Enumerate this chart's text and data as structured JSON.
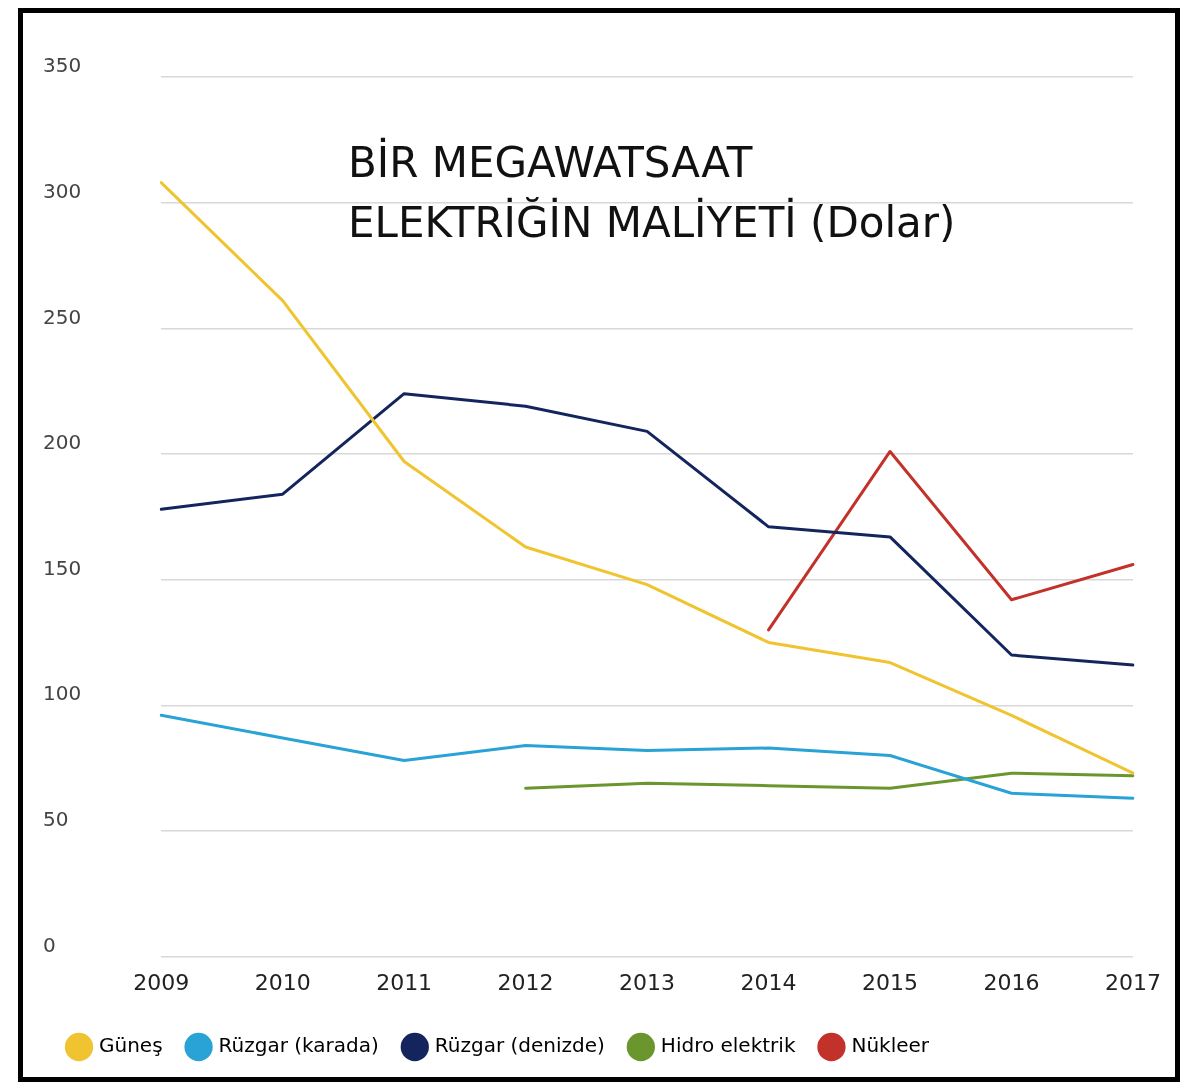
{
  "chart_data": {
    "type": "line",
    "title": "BİR MEGAWATSAAT\nELEKTRİĞİN MALİYETİ (Dolar)",
    "categories": [
      "2009",
      "2010",
      "2011",
      "2012",
      "2013",
      "2014",
      "2015",
      "2016",
      "2017"
    ],
    "series": [
      {
        "name": "Güneş",
        "color": "#f0c430",
        "values": [
          308,
          261,
          197,
          163,
          148,
          125,
          117,
          96,
          73
        ]
      },
      {
        "name": "Rüzgar (karada)",
        "color": "#29a3d6",
        "values": [
          96,
          87,
          78,
          84,
          82,
          83,
          80,
          65,
          63
        ]
      },
      {
        "name": "Rüzgar (denizde)",
        "color": "#14255e",
        "values": [
          178,
          184,
          224,
          219,
          209,
          171,
          167,
          120,
          116
        ]
      },
      {
        "name": "Hidro elektrik",
        "color": "#6b962e",
        "values": [
          null,
          null,
          null,
          67,
          69,
          68,
          67,
          73,
          72
        ]
      },
      {
        "name": "Nükleer",
        "color": "#c2312a",
        "values": [
          null,
          null,
          null,
          null,
          null,
          130,
          201,
          142,
          156
        ]
      }
    ],
    "ylim": [
      0,
      350
    ],
    "yticks": [
      0,
      50,
      100,
      150,
      200,
      250,
      300,
      350
    ],
    "grid": "y",
    "legend": "bottom",
    "marker": "none",
    "line_style": "solid"
  }
}
